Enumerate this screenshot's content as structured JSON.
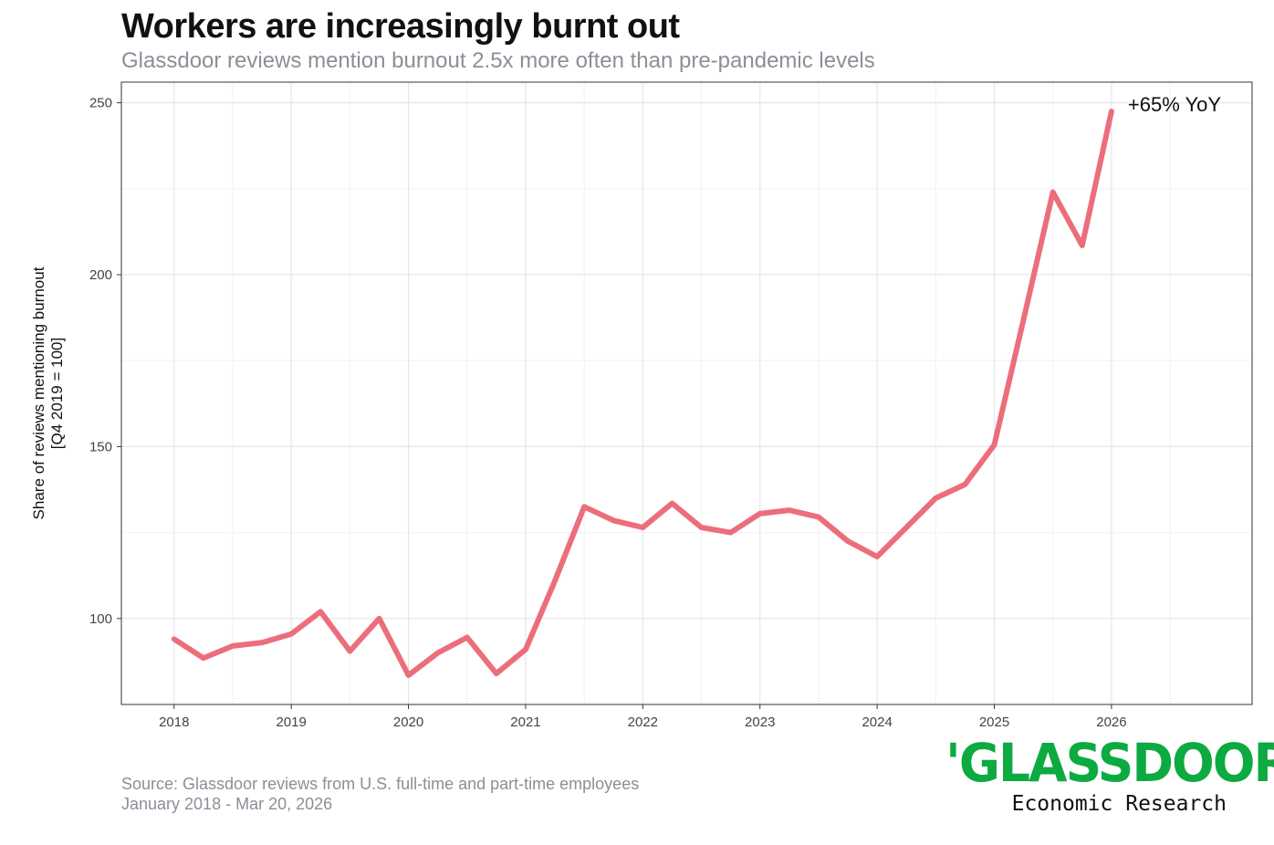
{
  "header": {
    "title": "Workers are increasingly burnt out",
    "subtitle": "Glassdoor reviews mention burnout 2.5x more often than pre-pandemic levels"
  },
  "footer": {
    "source_line1": "Source: Glassdoor reviews from U.S. full-time and part-time employees",
    "source_line2": "January 2018 - Mar 20, 2026"
  },
  "logo": {
    "wordmark": "'GLASSDOOR'",
    "tagline": "Economic Research",
    "color": "#0caa41"
  },
  "chart_data": {
    "type": "line",
    "title": "Workers are increasingly burnt out",
    "subtitle": "Glassdoor reviews mention burnout 2.5x more often than pre-pandemic levels",
    "xlabel": "",
    "ylabel": "Share of reviews mentioning burnout",
    "ylabel_line2": "[Q4 2019 = 100]",
    "xlim": [
      2017.55,
      2027.2
    ],
    "ylim": [
      75,
      256
    ],
    "x_ticks": [
      2018,
      2019,
      2020,
      2021,
      2022,
      2023,
      2024,
      2025,
      2026
    ],
    "y_ticks": [
      100,
      150,
      200,
      250
    ],
    "grid": true,
    "line_color": "#ec6e7b",
    "series": [
      {
        "x": [
          2018.0,
          2018.25,
          2018.5,
          2018.75,
          2019.0,
          2019.25,
          2019.5,
          2019.75,
          2020.0,
          2020.25,
          2020.5,
          2020.75,
          2021.0,
          2021.25,
          2021.5,
          2021.75,
          2022.0,
          2022.25,
          2022.5,
          2022.75,
          2023.0,
          2023.25,
          2023.5,
          2023.75,
          2024.0,
          2024.25,
          2024.5,
          2024.75,
          2025.0,
          2025.25,
          2025.5,
          2025.75,
          2026.0
        ],
        "values": [
          94,
          88.5,
          92,
          93,
          95.5,
          102,
          90.5,
          100,
          83.5,
          90,
          94.5,
          84,
          91,
          111,
          132.5,
          128.5,
          126.5,
          133.5,
          126.5,
          125,
          130.5,
          131.5,
          129.5,
          122.5,
          118,
          126.5,
          135,
          139,
          150.5,
          187,
          224,
          208.5,
          247.5
        ]
      }
    ],
    "annotations": [
      {
        "text": "+65% YoY"
      }
    ]
  }
}
